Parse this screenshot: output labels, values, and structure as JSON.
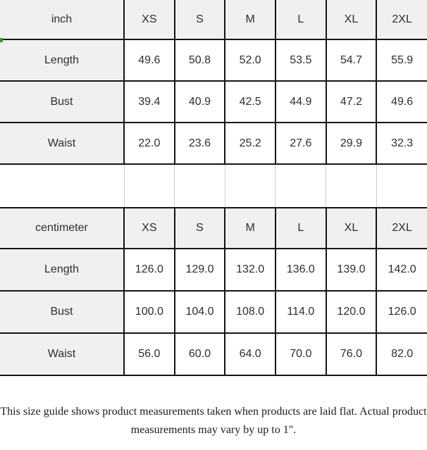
{
  "colors": {
    "header_bg": "#f0f0f0",
    "cell_bg": "#ffffff",
    "grid_border": "#151515",
    "spacer_line": "#cccccc",
    "text": "#2e2e2e",
    "artifact_green": "#3f8f3f"
  },
  "size_tables": [
    {
      "unit_label": "inch",
      "sizes": [
        "XS",
        "S",
        "M",
        "L",
        "XL",
        "2XL"
      ],
      "rows": [
        {
          "label": "Length",
          "values": [
            "49.6",
            "50.8",
            "52.0",
            "53.5",
            "54.7",
            "55.9"
          ]
        },
        {
          "label": "Bust",
          "values": [
            "39.4",
            "40.9",
            "42.5",
            "44.9",
            "47.2",
            "49.6"
          ]
        },
        {
          "label": "Waist",
          "values": [
            "22.0",
            "23.6",
            "25.2",
            "27.6",
            "29.9",
            "32.3"
          ]
        }
      ]
    },
    {
      "unit_label": "centimeter",
      "sizes": [
        "XS",
        "S",
        "M",
        "L",
        "XL",
        "2XL"
      ],
      "rows": [
        {
          "label": "Length",
          "values": [
            "126.0",
            "129.0",
            "132.0",
            "136.0",
            "139.0",
            "142.0"
          ]
        },
        {
          "label": "Bust",
          "values": [
            "100.0",
            "104.0",
            "108.0",
            "114.0",
            "120.0",
            "126.0"
          ]
        },
        {
          "label": "Waist",
          "values": [
            "56.0",
            "60.0",
            "64.0",
            "70.0",
            "76.0",
            "82.0"
          ]
        }
      ]
    }
  ],
  "spacer_cells": 7,
  "note": {
    "line1": "This size guide shows product measurements taken when products are laid flat. Actual product",
    "line2": "measurements may vary by up to 1\"."
  }
}
